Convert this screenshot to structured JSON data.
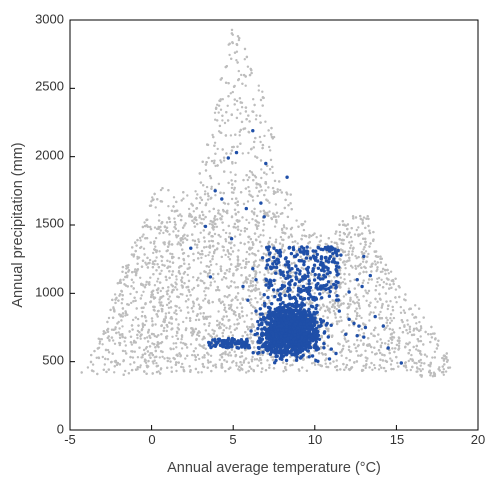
{
  "chart_data": {
    "type": "scatter",
    "title": "",
    "xlabel": "Annual average temperature (°C)",
    "ylabel": "Annual precipitation (mm)",
    "xlim": [
      -5,
      20
    ],
    "ylim": [
      0,
      3000
    ],
    "x_ticks": [
      -5,
      0,
      5,
      10,
      15,
      20
    ],
    "y_ticks": [
      0,
      500,
      1000,
      1500,
      2000,
      2500,
      3000
    ],
    "x_tick_labels": [
      "-5",
      "0",
      "5",
      "10",
      "15",
      "20"
    ],
    "y_tick_labels": [
      "0",
      "500",
      "1000",
      "1500",
      "2000",
      "2500",
      "3000"
    ],
    "grid": false,
    "legend": "none",
    "colors": {
      "background_series": "#bdbdbd",
      "highlight_series": "#1f4fa8",
      "frame": "#000000"
    },
    "series": [
      {
        "role": "background",
        "description_region": "dense grey cloud",
        "outline": [
          [
            -4.3,
            420
          ],
          [
            -3.0,
            400
          ],
          [
            0.0,
            410
          ],
          [
            3.0,
            420
          ],
          [
            6.0,
            420
          ],
          [
            9.0,
            430
          ],
          [
            12.0,
            440
          ],
          [
            14.5,
            420
          ],
          [
            16.5,
            390
          ],
          [
            17.8,
            380
          ],
          [
            18.4,
            430
          ],
          [
            18.0,
            600
          ],
          [
            17.0,
            800
          ],
          [
            15.8,
            1000
          ],
          [
            14.0,
            1300
          ],
          [
            13.5,
            1500
          ],
          [
            13.2,
            1580
          ],
          [
            12.2,
            1590
          ],
          [
            11.3,
            1500
          ],
          [
            10.2,
            1420
          ],
          [
            9.0,
            1600
          ],
          [
            8.0,
            1900
          ],
          [
            7.0,
            2400
          ],
          [
            6.0,
            2800
          ],
          [
            4.8,
            2950
          ],
          [
            4.3,
            2600
          ],
          [
            3.6,
            2200
          ],
          [
            3.0,
            1900
          ],
          [
            2.3,
            1750
          ],
          [
            0.3,
            1800
          ],
          [
            -0.5,
            1500
          ],
          [
            -2.0,
            1150
          ],
          [
            -2.8,
            800
          ],
          [
            -3.5,
            600
          ]
        ]
      },
      {
        "role": "highlight",
        "core": {
          "x_range": [
            5.0,
            11.0
          ],
          "y_range": [
            500,
            950
          ]
        },
        "scatter_points": [
          [
            6.2,
            2190
          ],
          [
            4.7,
            1990
          ],
          [
            5.2,
            2030
          ],
          [
            7.0,
            1950
          ],
          [
            8.3,
            1850
          ],
          [
            3.9,
            1750
          ],
          [
            4.3,
            1690
          ],
          [
            6.7,
            1660
          ],
          [
            5.8,
            1620
          ],
          [
            6.9,
            1560
          ],
          [
            3.3,
            1490
          ],
          [
            4.9,
            1400
          ],
          [
            2.4,
            1330
          ],
          [
            6.8,
            1260
          ],
          [
            3.6,
            1120
          ],
          [
            13.0,
            1270
          ],
          [
            13.4,
            1130
          ],
          [
            13.7,
            830
          ],
          [
            14.2,
            760
          ],
          [
            14.5,
            600
          ],
          [
            15.3,
            490
          ],
          [
            13.0,
            680
          ],
          [
            12.1,
            1010
          ],
          [
            11.6,
            1280
          ],
          [
            11.1,
            1330
          ],
          [
            12.6,
            1100
          ],
          [
            12.9,
            1050
          ],
          [
            3.5,
            640
          ],
          [
            3.9,
            650
          ],
          [
            4.3,
            620
          ],
          [
            9.2,
            1340
          ],
          [
            9.9,
            1310
          ],
          [
            10.5,
            1320
          ],
          [
            11.1,
            1290
          ],
          [
            8.7,
            1320
          ],
          [
            7.5,
            1330
          ],
          [
            7.7,
            1250
          ],
          [
            6.2,
            1180
          ],
          [
            6.4,
            1100
          ],
          [
            5.9,
            950
          ],
          [
            5.6,
            1050
          ],
          [
            10.8,
            1170
          ],
          [
            11.5,
            870
          ],
          [
            12.1,
            810
          ],
          [
            12.4,
            780
          ],
          [
            12.7,
            760
          ],
          [
            11.9,
            700
          ],
          [
            12.6,
            690
          ],
          [
            13.1,
            750
          ],
          [
            11.3,
            560
          ],
          [
            10.9,
            520
          ],
          [
            6.4,
            870
          ],
          [
            6.9,
            990
          ],
          [
            7.2,
            1080
          ],
          [
            9.6,
            1150
          ],
          [
            9.3,
            1050
          ],
          [
            10.1,
            1060
          ],
          [
            8.6,
            1180
          ]
        ]
      }
    ]
  }
}
